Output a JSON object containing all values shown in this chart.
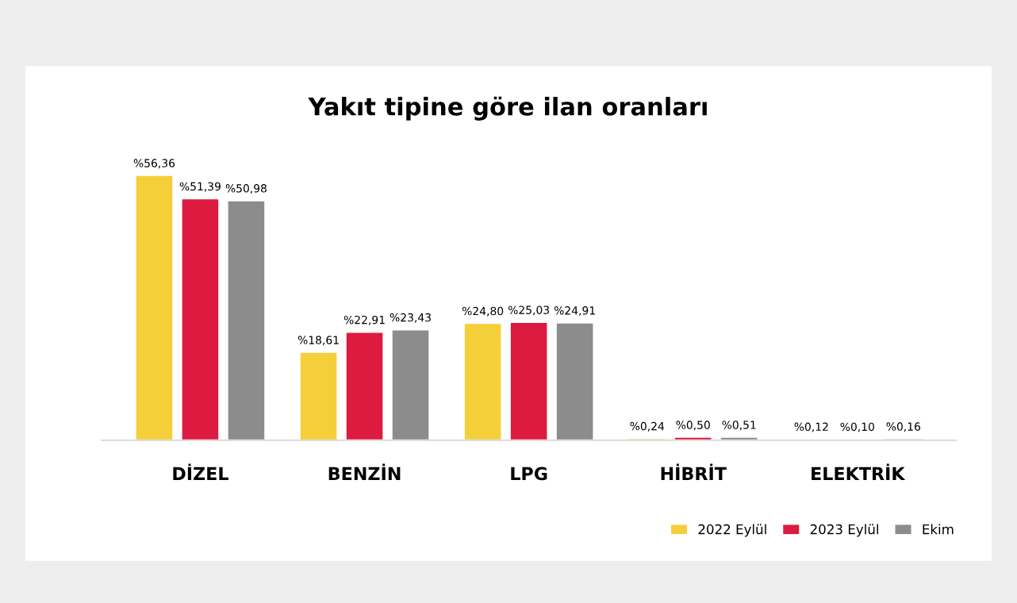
{
  "chart_data": {
    "type": "bar",
    "title": "Yakıt tipine göre ilan oranları",
    "categories": [
      "DİZEL",
      "BENZİN",
      "LPG",
      "HİBRİT",
      "ELEKTRİK"
    ],
    "series": [
      {
        "name": "2022 Eylül",
        "color": "#f5cf3a",
        "values": [
          56.36,
          18.61,
          24.8,
          0.24,
          0.12
        ],
        "value_labels": [
          "%56,36",
          "%18,61",
          "%24,80",
          "%0,24",
          "%0,12"
        ]
      },
      {
        "name": "2023 Eylül",
        "color": "#dd1a40",
        "values": [
          51.39,
          22.91,
          25.03,
          0.5,
          0.1
        ],
        "value_labels": [
          "%51,39",
          "%22,91",
          "%25,03",
          "%0,50",
          "%0,10"
        ]
      },
      {
        "name": "Ekim",
        "color": "#8c8c8c",
        "values": [
          50.98,
          23.43,
          24.91,
          0.51,
          0.16
        ],
        "value_labels": [
          "%50,98",
          "%23,43",
          "%24,91",
          "%0,51",
          "%0,16"
        ]
      }
    ],
    "legend": "bottom right"
  }
}
